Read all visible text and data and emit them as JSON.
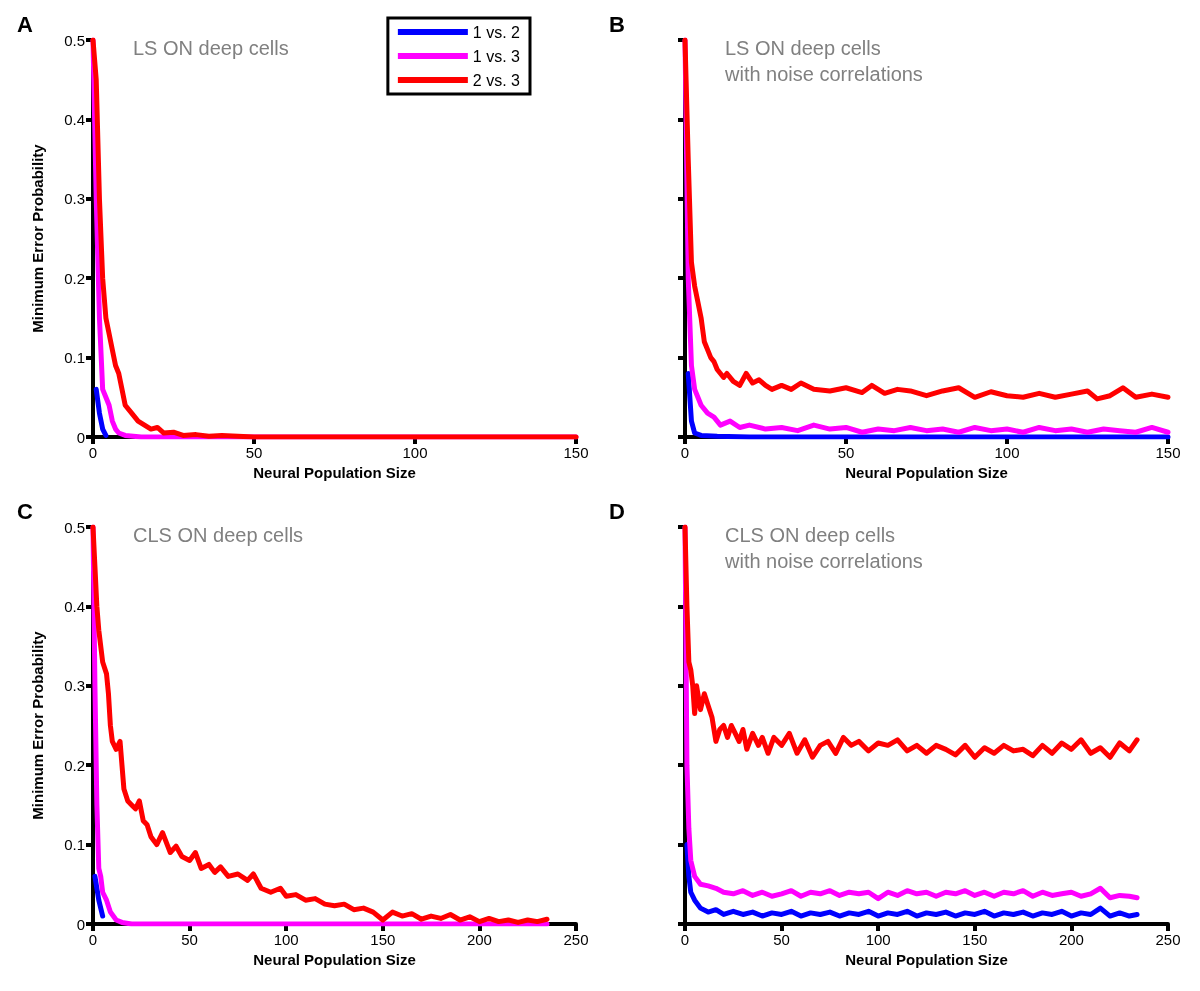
{
  "chart_data": [
    {
      "type": "line",
      "title": "A",
      "subtitle": "LS ON deep cells",
      "xlabel": "Neural Population Size",
      "ylabel": "Minimum Error Probability",
      "xlim": [
        0,
        150
      ],
      "xticks": [
        0,
        50,
        100,
        150
      ],
      "ylim": [
        0,
        0.5
      ],
      "yticks": [
        0,
        0.1,
        0.2,
        0.3,
        0.4,
        0.5
      ],
      "grid": false,
      "legend": "top right",
      "marker": "none",
      "line_style": "solid",
      "series": [
        {
          "name": "1 vs. 2",
          "color": "#0000ff",
          "x": [
            1,
            2,
            3,
            4
          ],
          "values": [
            0.06,
            0.03,
            0.01,
            0.002
          ]
        },
        {
          "name": "1 vs. 3",
          "color": "#ff00ff",
          "x": [
            0,
            1,
            2,
            3,
            4,
            5,
            6,
            7,
            8,
            10,
            15,
            150
          ],
          "values": [
            0.5,
            0.3,
            0.15,
            0.06,
            0.05,
            0.04,
            0.02,
            0.01,
            0.005,
            0.002,
            0,
            0
          ]
        },
        {
          "name": "2 vs. 3",
          "color": "#ff0000",
          "x": [
            0,
            1,
            2,
            3,
            4,
            5,
            6,
            7,
            8,
            9,
            10,
            12,
            14,
            16,
            18,
            20,
            22,
            25,
            28,
            32,
            36,
            40,
            45,
            50,
            150
          ],
          "values": [
            0.5,
            0.45,
            0.3,
            0.2,
            0.15,
            0.13,
            0.11,
            0.09,
            0.08,
            0.06,
            0.04,
            0.03,
            0.02,
            0.015,
            0.01,
            0.012,
            0.005,
            0.006,
            0.002,
            0.003,
            0.001,
            0.002,
            0.001,
            0,
            0
          ]
        }
      ]
    },
    {
      "type": "line",
      "title": "B",
      "subtitle": "LS ON deep cells\nwith noise correlations",
      "xlabel": "Neural Population Size",
      "xlim": [
        0,
        150
      ],
      "xticks": [
        0,
        50,
        100,
        150
      ],
      "ylim": [
        0,
        0.5
      ],
      "yticks": [
        0,
        0.1,
        0.2,
        0.3,
        0.4,
        0.5
      ],
      "tick_labels": "x",
      "grid": false,
      "marker": "none",
      "line_style": "solid",
      "series": [
        {
          "color": "#0000ff",
          "x": [
            1,
            2,
            3,
            5,
            10,
            20,
            150
          ],
          "values": [
            0.08,
            0.02,
            0.005,
            0.002,
            0.001,
            0,
            0
          ]
        },
        {
          "color": "#ff00ff",
          "x": [
            0,
            1,
            2,
            3,
            4,
            5,
            7,
            9,
            11,
            14,
            17,
            20,
            25,
            30,
            35,
            40,
            45,
            50,
            55,
            60,
            65,
            70,
            75,
            80,
            85,
            90,
            95,
            100,
            105,
            110,
            115,
            120,
            125,
            130,
            135,
            140,
            145,
            150
          ],
          "values": [
            0.5,
            0.2,
            0.09,
            0.06,
            0.05,
            0.04,
            0.03,
            0.025,
            0.015,
            0.02,
            0.012,
            0.015,
            0.01,
            0.012,
            0.008,
            0.015,
            0.01,
            0.012,
            0.006,
            0.01,
            0.008,
            0.012,
            0.008,
            0.01,
            0.006,
            0.012,
            0.008,
            0.01,
            0.006,
            0.012,
            0.008,
            0.01,
            0.006,
            0.01,
            0.008,
            0.006,
            0.012,
            0.006
          ]
        },
        {
          "color": "#ff0000",
          "x": [
            0,
            1,
            2,
            3,
            4,
            5,
            6,
            7,
            8,
            9,
            10,
            12,
            13,
            15,
            17,
            19,
            21,
            23,
            25,
            27,
            30,
            33,
            36,
            40,
            45,
            50,
            55,
            58,
            62,
            66,
            70,
            75,
            80,
            85,
            90,
            95,
            100,
            105,
            110,
            115,
            120,
            125,
            128,
            132,
            136,
            140,
            145,
            150
          ],
          "values": [
            0.5,
            0.35,
            0.22,
            0.19,
            0.17,
            0.15,
            0.12,
            0.11,
            0.1,
            0.095,
            0.085,
            0.075,
            0.08,
            0.07,
            0.065,
            0.08,
            0.068,
            0.072,
            0.065,
            0.06,
            0.065,
            0.06,
            0.068,
            0.06,
            0.058,
            0.062,
            0.056,
            0.065,
            0.055,
            0.06,
            0.058,
            0.052,
            0.058,
            0.062,
            0.05,
            0.057,
            0.052,
            0.05,
            0.055,
            0.05,
            0.054,
            0.058,
            0.048,
            0.052,
            0.062,
            0.05,
            0.054,
            0.05
          ]
        }
      ]
    },
    {
      "type": "line",
      "title": "C",
      "subtitle": "CLS ON deep cells",
      "xlabel": "Neural Population Size",
      "ylabel": "Minimum Error Probability",
      "xlim": [
        0,
        250
      ],
      "xticks": [
        0,
        50,
        100,
        150,
        200,
        250
      ],
      "ylim": [
        0,
        0.5
      ],
      "yticks": [
        0,
        0.1,
        0.2,
        0.3,
        0.4,
        0.5
      ],
      "grid": false,
      "marker": "none",
      "line_style": "solid",
      "series": [
        {
          "color": "#0000ff",
          "x": [
            1,
            2,
            3,
            4,
            5
          ],
          "values": [
            0.06,
            0.045,
            0.03,
            0.02,
            0.01
          ]
        },
        {
          "color": "#ff00ff",
          "x": [
            0,
            1,
            2,
            3,
            4,
            5,
            7,
            9,
            12,
            15,
            20,
            235
          ],
          "values": [
            0.5,
            0.3,
            0.15,
            0.07,
            0.06,
            0.04,
            0.03,
            0.015,
            0.005,
            0.002,
            0,
            0
          ]
        },
        {
          "color": "#ff0000",
          "x": [
            0,
            1,
            2,
            3,
            5,
            7,
            8,
            9,
            10,
            12,
            14,
            15,
            16,
            18,
            20,
            22,
            24,
            26,
            28,
            30,
            33,
            36,
            40,
            43,
            46,
            50,
            53,
            56,
            60,
            63,
            66,
            70,
            75,
            80,
            83,
            87,
            92,
            97,
            100,
            105,
            110,
            115,
            120,
            125,
            130,
            135,
            140,
            145,
            150,
            155,
            160,
            165,
            170,
            175,
            180,
            185,
            190,
            195,
            200,
            205,
            210,
            215,
            220,
            225,
            230,
            235
          ],
          "values": [
            0.5,
            0.45,
            0.4,
            0.37,
            0.33,
            0.315,
            0.29,
            0.25,
            0.23,
            0.22,
            0.23,
            0.2,
            0.17,
            0.155,
            0.15,
            0.145,
            0.155,
            0.13,
            0.125,
            0.11,
            0.1,
            0.115,
            0.09,
            0.098,
            0.085,
            0.08,
            0.09,
            0.07,
            0.075,
            0.065,
            0.072,
            0.06,
            0.063,
            0.055,
            0.063,
            0.045,
            0.04,
            0.045,
            0.035,
            0.037,
            0.03,
            0.032,
            0.025,
            0.023,
            0.025,
            0.018,
            0.02,
            0.015,
            0.005,
            0.015,
            0.01,
            0.013,
            0.006,
            0.01,
            0.007,
            0.012,
            0.005,
            0.009,
            0.003,
            0.007,
            0.003,
            0.005,
            0.002,
            0.005,
            0.003,
            0.006
          ]
        }
      ]
    },
    {
      "type": "line",
      "title": "D",
      "subtitle": "CLS ON deep cells\nwith noise correlations",
      "xlabel": "Neural Population Size",
      "xlim": [
        0,
        250
      ],
      "xticks": [
        0,
        50,
        100,
        150,
        200,
        250
      ],
      "ylim": [
        0,
        0.5
      ],
      "yticks": [
        0,
        0.1,
        0.2,
        0.3,
        0.4,
        0.5
      ],
      "tick_labels": "x",
      "grid": false,
      "marker": "none",
      "line_style": "solid",
      "series": [
        {
          "color": "#0000ff",
          "x": [
            1,
            2,
            3,
            5,
            8,
            12,
            16,
            20,
            25,
            30,
            35,
            40,
            45,
            50,
            55,
            60,
            65,
            70,
            75,
            80,
            85,
            90,
            95,
            100,
            105,
            110,
            115,
            120,
            125,
            130,
            135,
            140,
            145,
            150,
            155,
            160,
            165,
            170,
            175,
            180,
            185,
            190,
            195,
            200,
            205,
            210,
            215,
            220,
            225,
            230,
            234
          ],
          "values": [
            0.1,
            0.06,
            0.04,
            0.03,
            0.02,
            0.015,
            0.018,
            0.012,
            0.016,
            0.012,
            0.015,
            0.01,
            0.014,
            0.012,
            0.016,
            0.01,
            0.014,
            0.012,
            0.015,
            0.01,
            0.014,
            0.012,
            0.016,
            0.01,
            0.014,
            0.012,
            0.016,
            0.01,
            0.014,
            0.012,
            0.015,
            0.01,
            0.014,
            0.012,
            0.016,
            0.01,
            0.014,
            0.012,
            0.015,
            0.01,
            0.014,
            0.012,
            0.016,
            0.01,
            0.014,
            0.012,
            0.02,
            0.01,
            0.014,
            0.01,
            0.012
          ]
        },
        {
          "color": "#ff00ff",
          "x": [
            0,
            1,
            2,
            3,
            5,
            8,
            12,
            16,
            20,
            25,
            30,
            35,
            40,
            45,
            50,
            55,
            60,
            65,
            70,
            75,
            80,
            85,
            90,
            95,
            100,
            105,
            110,
            115,
            120,
            125,
            130,
            135,
            140,
            145,
            150,
            155,
            160,
            165,
            170,
            175,
            180,
            185,
            190,
            195,
            200,
            205,
            210,
            215,
            220,
            225,
            230,
            234
          ],
          "values": [
            0.5,
            0.2,
            0.12,
            0.08,
            0.06,
            0.05,
            0.048,
            0.045,
            0.04,
            0.038,
            0.042,
            0.036,
            0.04,
            0.035,
            0.038,
            0.042,
            0.035,
            0.04,
            0.038,
            0.042,
            0.036,
            0.04,
            0.038,
            0.04,
            0.032,
            0.04,
            0.036,
            0.042,
            0.038,
            0.04,
            0.035,
            0.04,
            0.038,
            0.042,
            0.036,
            0.04,
            0.035,
            0.04,
            0.038,
            0.042,
            0.035,
            0.04,
            0.036,
            0.038,
            0.04,
            0.035,
            0.038,
            0.045,
            0.033,
            0.036,
            0.035,
            0.033
          ]
        },
        {
          "color": "#ff0000",
          "x": [
            0,
            1,
            2,
            3,
            4,
            5,
            6,
            8,
            10,
            12,
            14,
            16,
            18,
            20,
            22,
            24,
            26,
            28,
            30,
            32,
            35,
            38,
            40,
            43,
            46,
            50,
            54,
            58,
            62,
            66,
            70,
            74,
            78,
            82,
            86,
            90,
            95,
            100,
            105,
            110,
            115,
            120,
            125,
            130,
            135,
            140,
            145,
            150,
            155,
            160,
            165,
            170,
            175,
            180,
            185,
            190,
            195,
            200,
            205,
            210,
            215,
            220,
            225,
            230,
            234
          ],
          "values": [
            0.5,
            0.4,
            0.33,
            0.32,
            0.3,
            0.265,
            0.3,
            0.27,
            0.29,
            0.275,
            0.26,
            0.23,
            0.245,
            0.25,
            0.235,
            0.25,
            0.24,
            0.23,
            0.245,
            0.22,
            0.24,
            0.225,
            0.235,
            0.215,
            0.235,
            0.225,
            0.24,
            0.215,
            0.232,
            0.21,
            0.225,
            0.23,
            0.215,
            0.235,
            0.225,
            0.23,
            0.218,
            0.228,
            0.225,
            0.232,
            0.218,
            0.225,
            0.215,
            0.225,
            0.22,
            0.213,
            0.225,
            0.21,
            0.222,
            0.215,
            0.225,
            0.218,
            0.22,
            0.212,
            0.225,
            0.215,
            0.228,
            0.22,
            0.232,
            0.215,
            0.222,
            0.21,
            0.228,
            0.218,
            0.232
          ]
        }
      ]
    }
  ]
}
